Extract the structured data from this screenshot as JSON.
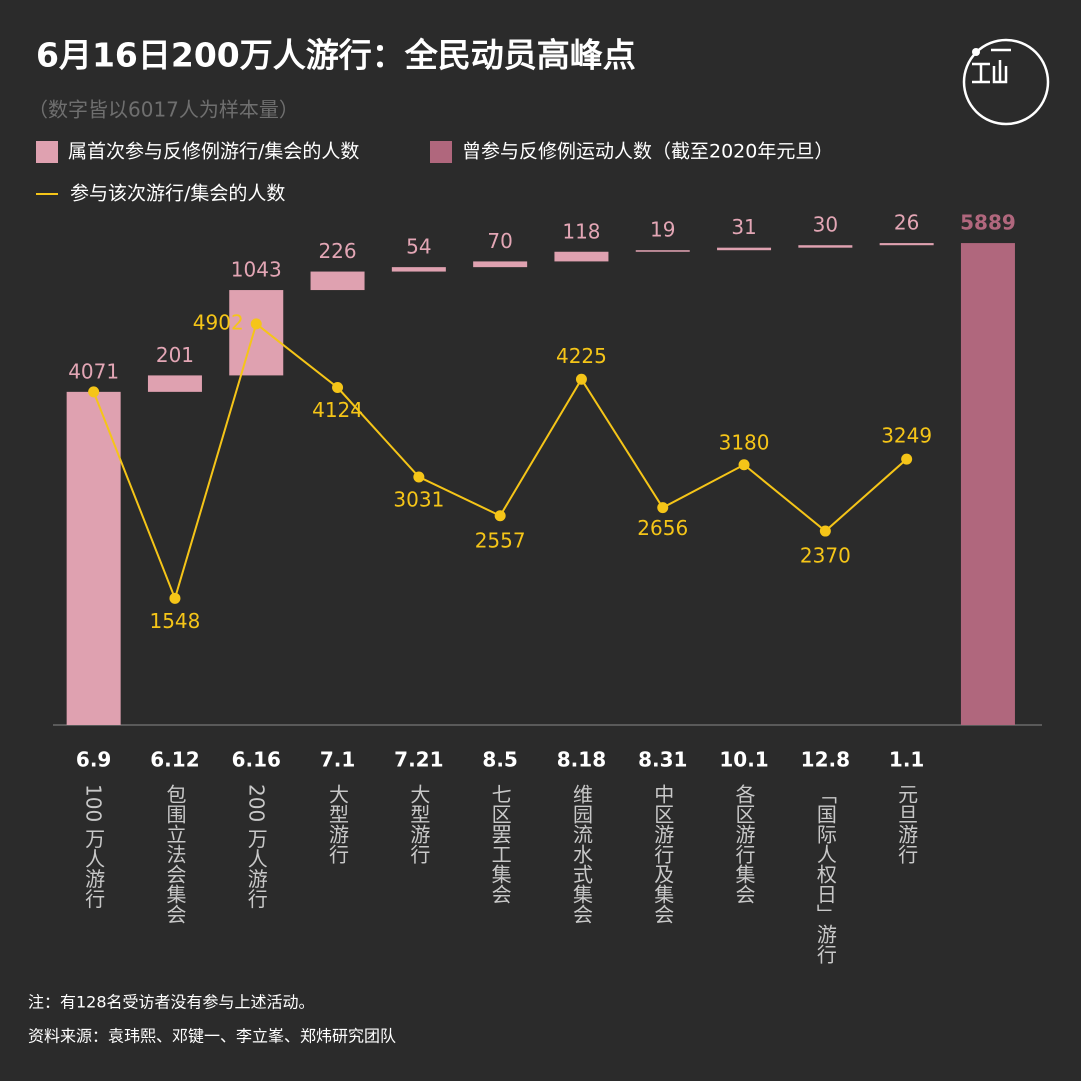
{
  "chart_data": {
    "type": "waterfall",
    "title": "6月16日200万人游行：全民动员高峰点",
    "subtitle": "（数字皆以6017人为样本量）",
    "categories": [
      "6.9",
      "6.12",
      "6.16",
      "7.1",
      "7.21",
      "8.5",
      "8.18",
      "8.31",
      "10.1",
      "12.8",
      "1.1",
      null
    ],
    "descriptions": [
      "100 万人游行",
      "包围立法会集会",
      "200 万人游行",
      "大型游行",
      "大型游行",
      "七区罢工集会",
      "维园流水式集会",
      "中区游行及集会",
      "各区游行集会",
      "「国际人权日」游行",
      "元旦游行",
      null
    ],
    "series": [
      {
        "name": "属首次参与反修例游行/集会的人数",
        "color": "#dfa1b0",
        "values": [
          4071,
          201,
          1043,
          226,
          54,
          70,
          118,
          19,
          31,
          30,
          26,
          null
        ]
      },
      {
        "name": "曾参与反修例运动人数（截至2020年元旦）",
        "color": "#b0677d",
        "values": [
          null,
          null,
          null,
          null,
          null,
          null,
          null,
          null,
          null,
          null,
          null,
          5889
        ]
      },
      {
        "name": "参与该次游行/集会的人数",
        "type": "line",
        "color": "#f5c518",
        "values": [
          4071,
          1548,
          4902,
          4124,
          3031,
          2557,
          4225,
          2656,
          3180,
          2370,
          3249,
          null
        ]
      }
    ],
    "ylim": [
      0,
      6000
    ],
    "notes": [
      "注：有128名受访者没有参与上述活动。",
      "资料来源：袁玮熙、邓键一、李立峯、郑炜研究团队"
    ]
  }
}
